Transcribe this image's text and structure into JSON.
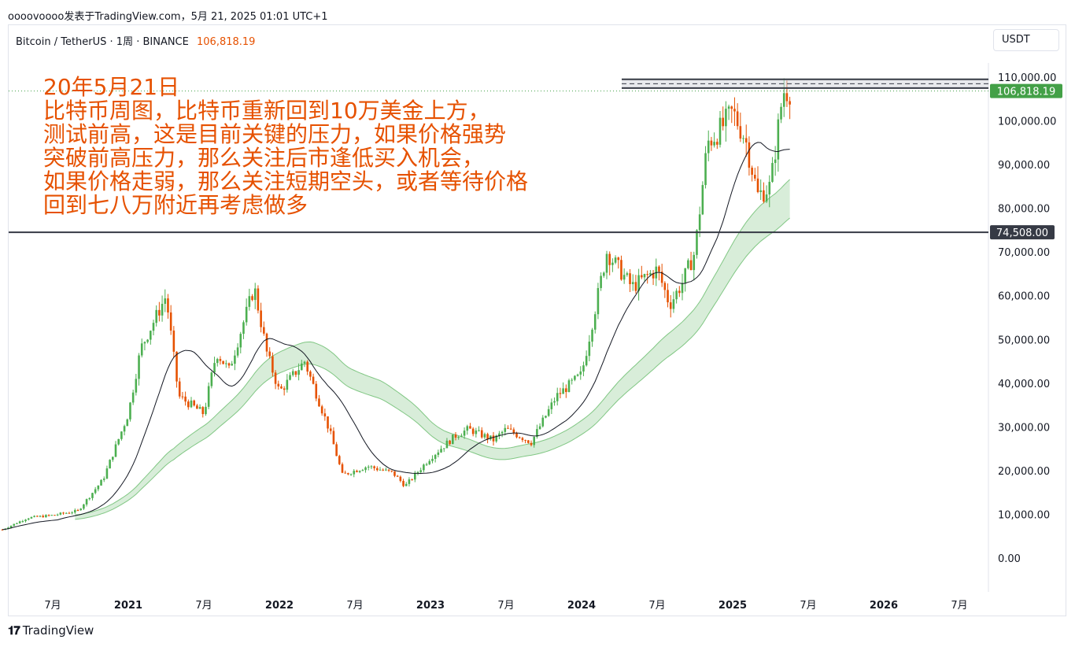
{
  "header": {
    "author_line": "oooovoooo发表于TradingView.com，5月 21, 2025 01:01 UTC+1"
  },
  "symbol": {
    "title": "Bitcoin / TetherUS · 1周 · BINANCE",
    "last_price": "106,818.19",
    "currency_button": "USDT"
  },
  "annotation": {
    "lines": [
      "20年5月21日",
      "比特币周图，比特币重新回到10万美金上方，",
      "测试前高，这是目前关键的压力，如果价格强势",
      "突破前高压力，那么关注后市逢低买入机会，",
      "如果价格走弱，那么关注短期空头，或者等待价格",
      "回到七八万附近再考虑做多"
    ]
  },
  "price_tags": {
    "current": "106,818.19",
    "support": "74,508.00"
  },
  "footer": {
    "logo_text": "TradingView"
  },
  "colors": {
    "up": "#26a69a",
    "up_candle": "#4caf50",
    "down_candle": "#e65100",
    "annotation": "#e65100",
    "ma_line": "#131722",
    "band_fill": "#c8e6c9",
    "band_line": "#81c784",
    "support_line": "#363a45",
    "resistance_line": "#363a45",
    "current_price_bg": "#43a047"
  },
  "chart_data": {
    "type": "candlestick",
    "title": "Bitcoin / TetherUS · 1周 · BINANCE",
    "y_axis": {
      "ticks": [
        0,
        10000,
        20000,
        30000,
        40000,
        50000,
        60000,
        70000,
        80000,
        90000,
        100000,
        110000
      ],
      "tick_labels": [
        "0.00",
        "10,000.00",
        "20,000.00",
        "30,000.00",
        "40,000.00",
        "50,000.00",
        "60,000.00",
        "70,000.00",
        "80,000.00",
        "90,000.00",
        "100,000.00",
        "110,000.00"
      ],
      "range": [
        0,
        110000
      ]
    },
    "x_axis": {
      "tick_labels": [
        "7月",
        "2021",
        "7月",
        "2022",
        "7月",
        "2023",
        "7月",
        "2024",
        "7月",
        "2025",
        "7月",
        "2026",
        "7月"
      ],
      "tick_dates": [
        "2020-07",
        "2021-01",
        "2021-07",
        "2022-01",
        "2022-07",
        "2023-01",
        "2023-07",
        "2024-01",
        "2024-07",
        "2025-01",
        "2025-07",
        "2026-01",
        "2026-07"
      ],
      "range": [
        "2020-03",
        "2026-08"
      ]
    },
    "horizontal_lines": [
      {
        "price": 74508,
        "label": "74,508.00"
      },
      {
        "price": 106818.19,
        "label": "106,818.19",
        "style": "dotted"
      }
    ],
    "resistance_zone": [
      107500,
      109500
    ],
    "close_path": [
      [
        "2020-03",
        6500
      ],
      [
        "2020-05",
        9200
      ],
      [
        "2020-07",
        9800
      ],
      [
        "2020-09",
        10800
      ],
      [
        "2020-11",
        18000
      ],
      [
        "2021-01",
        33000
      ],
      [
        "2021-02",
        48000
      ],
      [
        "2021-04",
        60000
      ],
      [
        "2021-05",
        37000
      ],
      [
        "2021-07",
        33000
      ],
      [
        "2021-08",
        47000
      ],
      [
        "2021-09",
        43000
      ],
      [
        "2021-11",
        62000
      ],
      [
        "2021-12",
        47000
      ],
      [
        "2022-01",
        38000
      ],
      [
        "2022-03",
        45000
      ],
      [
        "2022-05",
        29000
      ],
      [
        "2022-06",
        19000
      ],
      [
        "2022-08",
        21000
      ],
      [
        "2022-10",
        19500
      ],
      [
        "2022-11",
        16500
      ],
      [
        "2023-01",
        23000
      ],
      [
        "2023-03",
        28000
      ],
      [
        "2023-04",
        29500
      ],
      [
        "2023-06",
        27000
      ],
      [
        "2023-07",
        29500
      ],
      [
        "2023-09",
        26500
      ],
      [
        "2023-11",
        37000
      ],
      [
        "2024-01",
        42000
      ],
      [
        "2024-03",
        70000
      ],
      [
        "2024-05",
        62000
      ],
      [
        "2024-07",
        66000
      ],
      [
        "2024-08",
        58000
      ],
      [
        "2024-09",
        63000
      ],
      [
        "2024-10",
        70000
      ],
      [
        "2024-11",
        95000
      ],
      [
        "2024-12",
        98000
      ],
      [
        "2025-01",
        102000
      ],
      [
        "2025-02",
        96000
      ],
      [
        "2025-03",
        83000
      ],
      [
        "2025-04",
        85000
      ],
      [
        "2025-05",
        106818
      ]
    ]
  }
}
